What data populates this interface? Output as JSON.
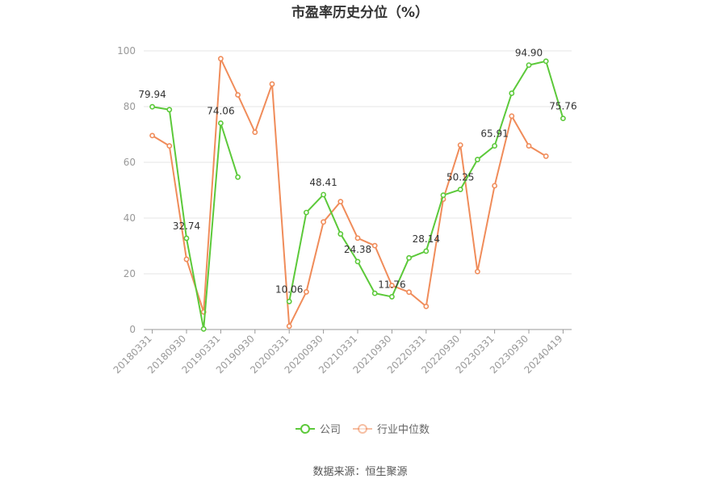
{
  "chart_data": {
    "type": "line",
    "title": "市盈率历史分位（%）",
    "xlabel": "",
    "ylabel": "",
    "ylim": [
      0,
      100
    ],
    "yticks": [
      0,
      20,
      40,
      60,
      80,
      100
    ],
    "grid": true,
    "legend_position": "bottom",
    "x": [
      "20180331",
      "20180630",
      "20180930",
      "20181231",
      "20190331",
      "20190630",
      "20190930",
      "20191231",
      "20200331",
      "20200630",
      "20200930",
      "20201231",
      "20210331",
      "20210630",
      "20210930",
      "20211231",
      "20220331",
      "20220630",
      "20220930",
      "20221231",
      "20230331",
      "20230630",
      "20230930",
      "20231231",
      "20240419"
    ],
    "x_tick_labels": [
      "20180331",
      "20180930",
      "20190331",
      "20190930",
      "20200331",
      "20200930",
      "20210331",
      "20210930",
      "20220331",
      "20220930",
      "20230331",
      "20230930",
      "20240419"
    ],
    "series": [
      {
        "name": "公司",
        "color": "#5cc93a",
        "values": [
          79.94,
          78.9,
          32.74,
          0.2,
          74.06,
          54.7,
          null,
          null,
          10.06,
          42.0,
          48.41,
          34.3,
          24.38,
          13.0,
          11.76,
          25.7,
          28.14,
          48.2,
          50.25,
          61.0,
          65.91,
          84.8,
          94.9,
          96.3,
          75.76
        ],
        "labels": [
          {
            "index": 0,
            "text": "79.94"
          },
          {
            "index": 2,
            "text": "32.74"
          },
          {
            "index": 4,
            "text": "74.06"
          },
          {
            "index": 8,
            "text": "10.06"
          },
          {
            "index": 10,
            "text": "48.41"
          },
          {
            "index": 12,
            "text": "24.38"
          },
          {
            "index": 14,
            "text": "11.76"
          },
          {
            "index": 16,
            "text": "28.14"
          },
          {
            "index": 18,
            "text": "50.25"
          },
          {
            "index": 20,
            "text": "65.91"
          },
          {
            "index": 22,
            "text": "94.90"
          },
          {
            "index": 24,
            "text": "75.76"
          }
        ]
      },
      {
        "name": "行业中位数",
        "color": "#f08c5a",
        "values": [
          69.6,
          65.9,
          25.2,
          6.3,
          97.2,
          84.2,
          70.8,
          88.1,
          1.2,
          13.5,
          38.6,
          45.9,
          32.8,
          30.1,
          15.8,
          13.4,
          8.3,
          46.8,
          66.2,
          20.8,
          51.6,
          76.6,
          65.9,
          62.2,
          null
        ]
      }
    ]
  },
  "source": "数据来源：恒生聚源"
}
